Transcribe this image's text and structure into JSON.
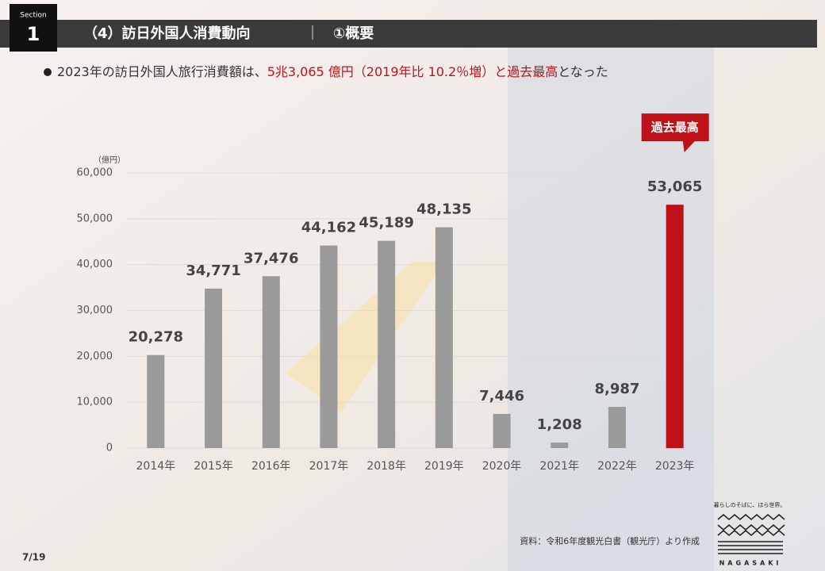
{
  "header": {
    "section": "Section",
    "number": "1",
    "title": "（4）訪日外国人消費動向",
    "separator": "｜",
    "subtitle": "①概要"
  },
  "bullet": {
    "text1": "2023年の訪日外国人旅行消費額は、",
    "highlight": "5兆3,065 億円（2019年比 10.2％増）と過去最高",
    "text2": "となった"
  },
  "chart_data": {
    "type": "bar",
    "y_label": "（億円）",
    "categories": [
      "2014年",
      "2015年",
      "2016年",
      "2017年",
      "2018年",
      "2019年",
      "2020年",
      "2021年",
      "2022年",
      "2023年"
    ],
    "values": [
      20278,
      34771,
      37476,
      44162,
      45189,
      48135,
      7446,
      1208,
      8987,
      53065
    ],
    "value_labels": [
      "20,278",
      "34,771",
      "37,476",
      "44,162",
      "45,189",
      "48,135",
      "7,446",
      "1,208",
      "8,987",
      "53,065"
    ],
    "colors": [
      "#9a9a9a",
      "#9a9a9a",
      "#9a9a9a",
      "#9a9a9a",
      "#9a9a9a",
      "#9a9a9a",
      "#9a9a9a",
      "#9a9a9a",
      "#9a9a9a",
      "#c0111b"
    ],
    "annotation": "過去最高",
    "ylim": [
      0,
      60000
    ],
    "yticks": [
      0,
      {
        "value": 10000,
        "label": "10,000"
      },
      {
        "value": 20000,
        "label": "20,000"
      },
      {
        "value": 30000,
        "label": "30,000"
      },
      {
        "value": 40000,
        "label": "40,000"
      },
      {
        "value": 50000,
        "label": "50,000"
      },
      {
        "value": 60000,
        "label": "60,000"
      }
    ],
    "grid": true
  },
  "footer": {
    "source": "資料：令和6年度観光白書（観光庁）より作成",
    "page": "7/19",
    "tagline": "暮らしのそばに、ほら世界。",
    "logo": "NAGASAKI"
  }
}
